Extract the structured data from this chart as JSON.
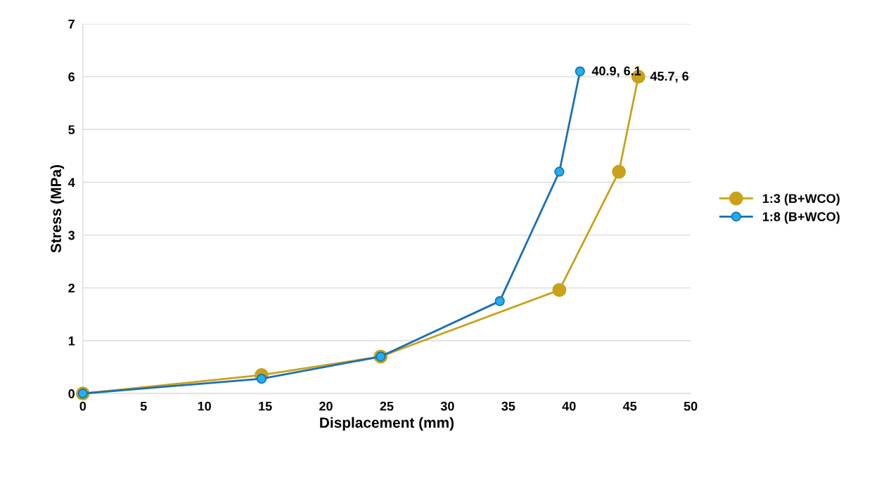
{
  "chart_data": {
    "type": "line",
    "xlabel": "Displacement (mm)",
    "ylabel": "Stress (MPa)",
    "xlim": [
      0,
      50
    ],
    "xticks": [
      0,
      5,
      10,
      15,
      20,
      25,
      30,
      35,
      40,
      45,
      50
    ],
    "ylim": [
      0,
      7
    ],
    "yticks": [
      0,
      1,
      2,
      3,
      4,
      5,
      6,
      7
    ],
    "grid": "y",
    "legend": "right",
    "marker": "circle",
    "line_style": "solid",
    "series": [
      {
        "name": "1:3 (B+WCO)",
        "color": "#c9a21a",
        "x": [
          0,
          14.7,
          24.5,
          39.2,
          44.1,
          45.7
        ],
        "values": [
          0,
          0.35,
          0.7,
          1.96,
          4.2,
          6
        ]
      },
      {
        "name": "1:8 (B+WCO)",
        "color": "#1a6fb5",
        "x": [
          0,
          14.7,
          24.5,
          34.3,
          39.2,
          40.9
        ],
        "values": [
          0,
          0.28,
          0.7,
          1.75,
          4.2,
          6.1
        ]
      }
    ],
    "annotations": [
      {
        "text": "40.9, 6.1",
        "x": 40.9,
        "y": 6.1
      },
      {
        "text": "45.7, 6",
        "x": 45.7,
        "y": 6
      }
    ]
  }
}
